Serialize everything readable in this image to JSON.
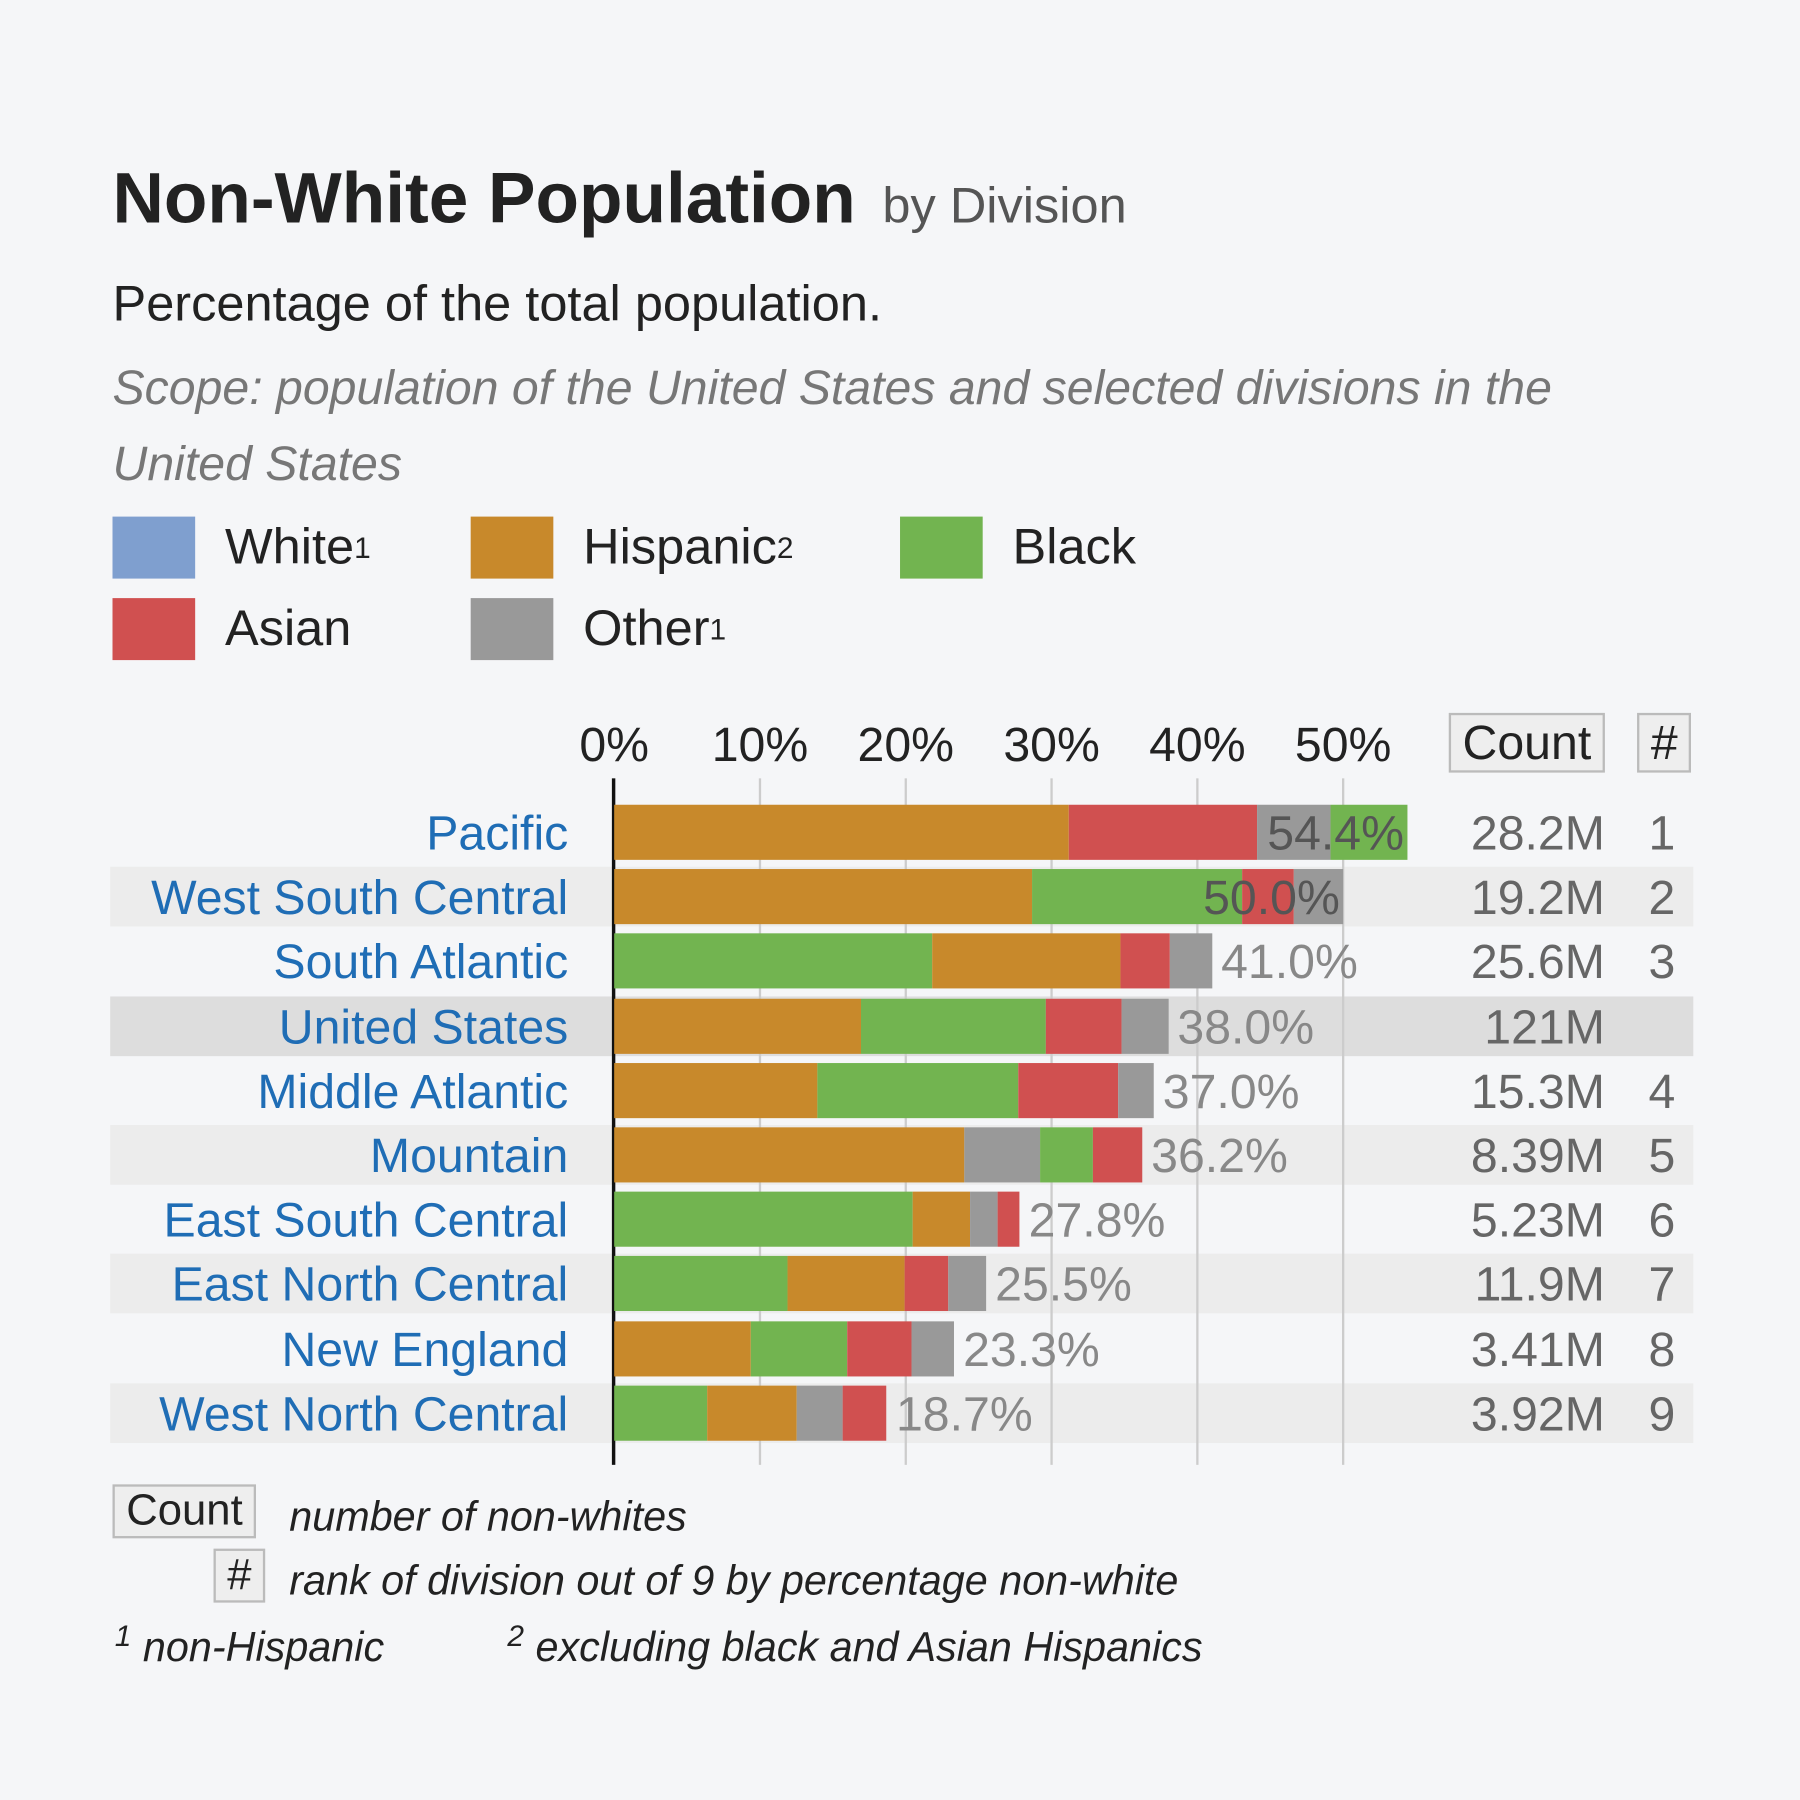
{
  "header": {
    "title": "Non-White Population",
    "title_suffix": "by Division",
    "subtitle": "Percentage of the total population.",
    "scope": "Scope: population of the United States and selected divisions in the United States"
  },
  "legend": [
    {
      "label": "White",
      "sup": "1",
      "color": "#7f9fcf"
    },
    {
      "label": "Hispanic",
      "sup": "2",
      "color": "#c8892b"
    },
    {
      "label": "Black",
      "sup": "",
      "color": "#72b450"
    },
    {
      "label": "Asian",
      "sup": "",
      "color": "#d05050"
    },
    {
      "label": "Other",
      "sup": "1",
      "color": "#999999"
    }
  ],
  "columns": {
    "count": "Count",
    "rank": "#"
  },
  "chart_data": {
    "type": "bar",
    "stacked": true,
    "orientation": "horizontal",
    "x_ticks": [
      "0%",
      "10%",
      "20%",
      "30%",
      "40%",
      "50%"
    ],
    "xlim": [
      0,
      55
    ],
    "grid": true,
    "colors": {
      "Hispanic": "#c8892b",
      "Black": "#72b450",
      "Asian": "#d05050",
      "Other": "#999999"
    },
    "rows": [
      {
        "name": "Pacific",
        "total": "54.4%",
        "count": "28.2M",
        "rank": "1",
        "segments": [
          [
            "Hispanic",
            31.2
          ],
          [
            "Asian",
            12.9
          ],
          [
            "Other",
            5.0
          ],
          [
            "Black",
            5.3
          ]
        ]
      },
      {
        "name": "West South Central",
        "total": "50.0%",
        "count": "19.2M",
        "rank": "2",
        "segments": [
          [
            "Hispanic",
            28.7
          ],
          [
            "Black",
            14.4
          ],
          [
            "Asian",
            3.5
          ],
          [
            "Other",
            3.4
          ]
        ]
      },
      {
        "name": "South Atlantic",
        "total": "41.0%",
        "count": "25.6M",
        "rank": "3",
        "segments": [
          [
            "Black",
            21.8
          ],
          [
            "Hispanic",
            12.9
          ],
          [
            "Asian",
            3.4
          ],
          [
            "Other",
            2.9
          ]
        ]
      },
      {
        "name": "United States",
        "total": "38.0%",
        "count": "121M",
        "rank": "",
        "highlight": true,
        "segments": [
          [
            "Hispanic",
            16.9
          ],
          [
            "Black",
            12.7
          ],
          [
            "Asian",
            5.2
          ],
          [
            "Other",
            3.2
          ]
        ]
      },
      {
        "name": "Middle Atlantic",
        "total": "37.0%",
        "count": "15.3M",
        "rank": "4",
        "segments": [
          [
            "Hispanic",
            13.9
          ],
          [
            "Black",
            13.8
          ],
          [
            "Asian",
            6.9
          ],
          [
            "Other",
            2.4
          ]
        ]
      },
      {
        "name": "Mountain",
        "total": "36.2%",
        "count": "8.39M",
        "rank": "5",
        "segments": [
          [
            "Hispanic",
            24.0
          ],
          [
            "Other",
            5.2
          ],
          [
            "Black",
            3.6
          ],
          [
            "Asian",
            3.4
          ]
        ]
      },
      {
        "name": "East South Central",
        "total": "27.8%",
        "count": "5.23M",
        "rank": "6",
        "segments": [
          [
            "Black",
            20.5
          ],
          [
            "Hispanic",
            3.9
          ],
          [
            "Other",
            1.9
          ],
          [
            "Asian",
            1.5
          ]
        ]
      },
      {
        "name": "East North Central",
        "total": "25.5%",
        "count": "11.9M",
        "rank": "7",
        "segments": [
          [
            "Black",
            11.9
          ],
          [
            "Hispanic",
            8.0
          ],
          [
            "Asian",
            3.0
          ],
          [
            "Other",
            2.6
          ]
        ]
      },
      {
        "name": "New England",
        "total": "23.3%",
        "count": "3.41M",
        "rank": "8",
        "segments": [
          [
            "Hispanic",
            9.4
          ],
          [
            "Black",
            6.6
          ],
          [
            "Asian",
            4.4
          ],
          [
            "Other",
            2.9
          ]
        ]
      },
      {
        "name": "West North Central",
        "total": "18.7%",
        "count": "3.92M",
        "rank": "9",
        "segments": [
          [
            "Black",
            6.4
          ],
          [
            "Hispanic",
            6.1
          ],
          [
            "Other",
            3.2
          ],
          [
            "Asian",
            3.0
          ]
        ]
      }
    ]
  },
  "footnotes": {
    "count_label": "Count",
    "count_desc": "number of non-whites",
    "rank_label": "#",
    "rank_desc": "rank of division out of 9 by percentage non-white",
    "fn1_mark": "1",
    "fn1": "non-Hispanic",
    "fn2_mark": "2",
    "fn2": "excluding black and Asian Hispanics"
  }
}
